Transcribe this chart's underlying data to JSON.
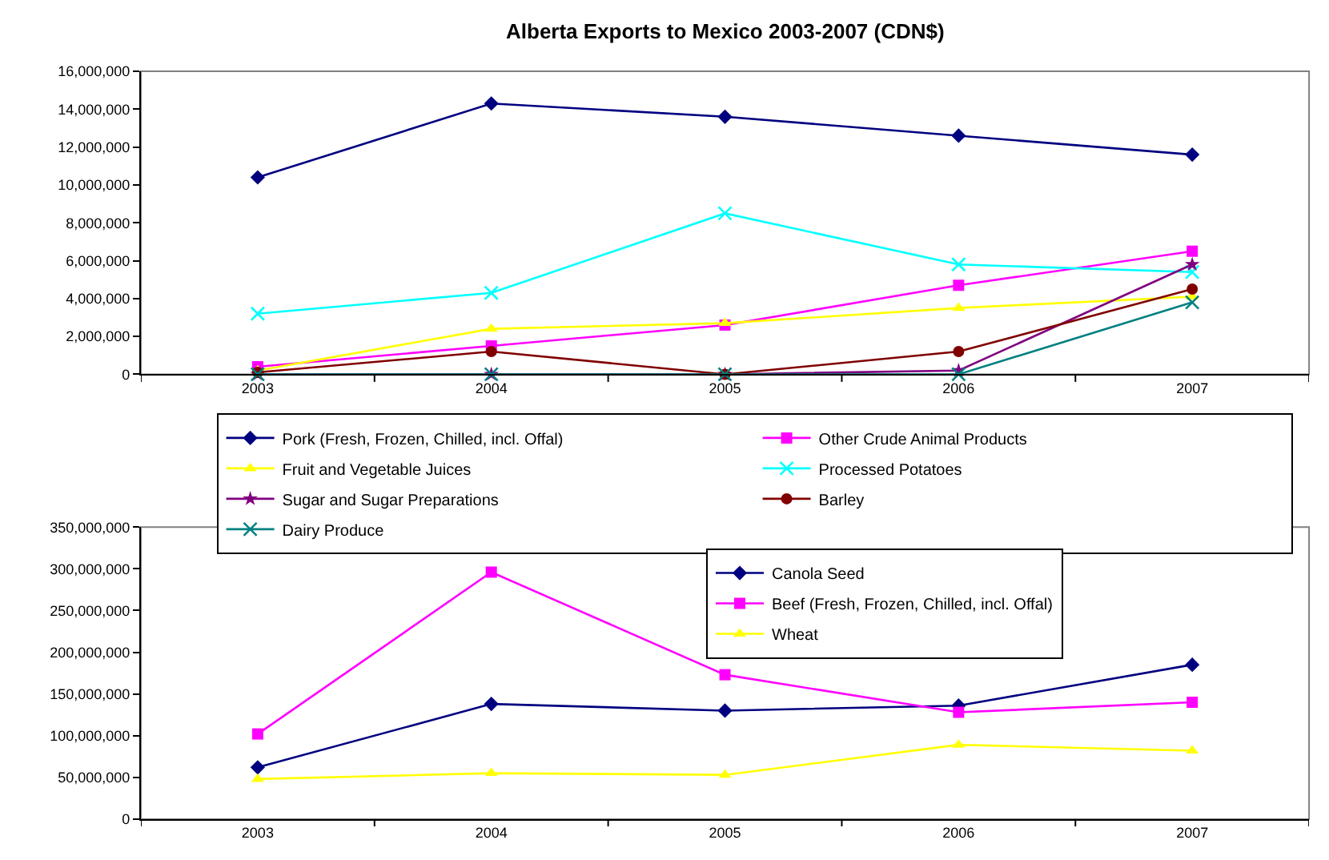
{
  "chart_data": [
    {
      "type": "line",
      "title": "Alberta Exports to Mexico 2003-2007 (CDN$)",
      "categories": [
        "2003",
        "2004",
        "2005",
        "2006",
        "2007"
      ],
      "series": [
        {
          "name": "Pork (Fresh, Frozen, Chilled, incl. Offal)",
          "color": "#000080",
          "marker": "diamond",
          "values": [
            10400000,
            14300000,
            13600000,
            12600000,
            11600000
          ]
        },
        {
          "name": "Other Crude Animal Products",
          "color": "#ff00ff",
          "marker": "square",
          "values": [
            400000,
            1500000,
            2600000,
            4700000,
            6500000
          ]
        },
        {
          "name": "Fruit and Vegetable Juices",
          "color": "#ffff00",
          "marker": "triangle",
          "values": [
            200000,
            2400000,
            2700000,
            3500000,
            4100000
          ]
        },
        {
          "name": "Processed Potatoes",
          "color": "#00ffff",
          "marker": "cross",
          "values": [
            3200000,
            4300000,
            8500000,
            5800000,
            5400000
          ]
        },
        {
          "name": "Sugar and Sugar Preparations",
          "color": "#800080",
          "marker": "star",
          "values": [
            0,
            0,
            0,
            200000,
            5800000
          ]
        },
        {
          "name": "Barley",
          "color": "#800000",
          "marker": "circle",
          "values": [
            100000,
            1200000,
            0,
            1200000,
            4500000
          ]
        },
        {
          "name": "Dairy Produce",
          "color": "#008080",
          "marker": "cross",
          "values": [
            0,
            0,
            0,
            0,
            3800000
          ]
        }
      ],
      "ylim": [
        0,
        16000000
      ],
      "yticks": [
        {
          "value": 0,
          "label": "0"
        },
        {
          "value": 2000000,
          "label": "2,000,000"
        },
        {
          "value": 4000000,
          "label": "4,000,000"
        },
        {
          "value": 6000000,
          "label": "6,000,000"
        },
        {
          "value": 8000000,
          "label": "8,000,000"
        },
        {
          "value": 10000000,
          "label": "10,000,000"
        },
        {
          "value": 12000000,
          "label": "12,000,000"
        },
        {
          "value": 14000000,
          "label": "14,000,000"
        },
        {
          "value": 16000000,
          "label": "16,000,000"
        }
      ],
      "grid": false,
      "legend": "bottom"
    },
    {
      "type": "line",
      "categories": [
        "2003",
        "2004",
        "2005",
        "2006",
        "2007"
      ],
      "series": [
        {
          "name": "Canola Seed",
          "color": "#000080",
          "marker": "diamond",
          "values": [
            62000000,
            138000000,
            130000000,
            136000000,
            185000000
          ]
        },
        {
          "name": "Beef (Fresh, Frozen, Chilled, incl. Offal)",
          "color": "#ff00ff",
          "marker": "square",
          "values": [
            102000000,
            296000000,
            173000000,
            128000000,
            140000000
          ]
        },
        {
          "name": "Wheat",
          "color": "#ffff00",
          "marker": "triangle",
          "values": [
            48000000,
            55000000,
            53000000,
            89000000,
            82000000
          ]
        }
      ],
      "ylim": [
        0,
        350000000
      ],
      "yticks": [
        {
          "value": 0,
          "label": "0"
        },
        {
          "value": 50000000,
          "label": "50,000,000"
        },
        {
          "value": 100000000,
          "label": "100,000,000"
        },
        {
          "value": 150000000,
          "label": "150,000,000"
        },
        {
          "value": 200000000,
          "label": "200,000,000"
        },
        {
          "value": 250000000,
          "label": "250,000,000"
        },
        {
          "value": 300000000,
          "label": "300,000,000"
        },
        {
          "value": 350000000,
          "label": "350,000,000"
        }
      ],
      "grid": false,
      "legend": "top right"
    }
  ]
}
